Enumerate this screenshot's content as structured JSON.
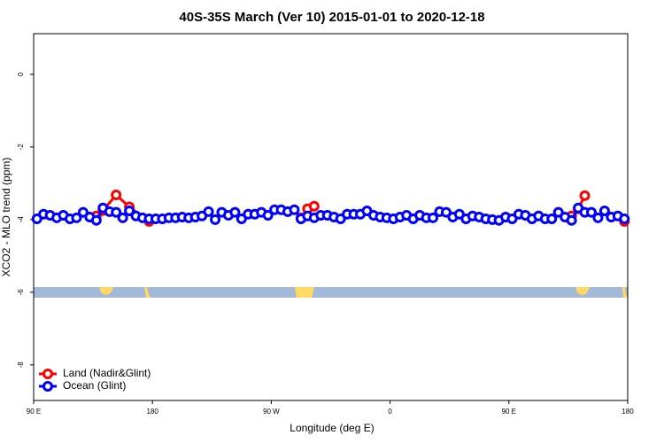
{
  "chart_data": {
    "type": "line",
    "title": "40S-35S March (Ver 10)   2015-01-01 to 2020-12-18",
    "x_label": "Longitude (deg E)",
    "y_label": "XCO2 - MLO trend (ppm)",
    "xlim": [
      90,
      540
    ],
    "xticks": [
      {
        "value": 90,
        "label": "90 E"
      },
      {
        "value": 180,
        "label": "180"
      },
      {
        "value": 270,
        "label": "90 W"
      },
      {
        "value": 360,
        "label": "0"
      },
      {
        "value": 450,
        "label": "90 E"
      },
      {
        "value": 540,
        "label": "180"
      }
    ],
    "ylim": [
      -8.98,
      1.12
    ],
    "yticks": [
      0,
      -2,
      -4,
      -6,
      -8
    ],
    "legend": "bottom-left",
    "series": [
      {
        "name": "Land (Nadir&Glint)",
        "color": "#ff0000",
        "x": [
          137.5,
          142.5,
          152.5,
          162.5,
          177.5,
          250,
          292.5,
          297.5,
          302.5,
          400,
          497.5,
          502.5,
          507.5,
          520,
          537.5
        ],
        "values": [
          -3.9,
          -3.75,
          -3.32,
          -3.65,
          -4.05,
          null,
          -3.95,
          -3.7,
          -3.63,
          null,
          -3.9,
          -3.7,
          -3.34,
          null,
          -4.05
        ]
      },
      {
        "name": "Ocean (Glint)",
        "color": "#0000ff",
        "x": [
          92.5,
          97.5,
          102.5,
          107.5,
          112.5,
          117.5,
          122.5,
          127.5,
          132.5,
          137.5,
          142.5,
          147.5,
          152.5,
          157.5,
          162.5,
          167.5,
          172.5,
          177.5,
          182.5,
          187.5,
          192.5,
          197.5,
          202.5,
          207.5,
          212.5,
          217.5,
          222.5,
          227.5,
          232.5,
          237.5,
          242.5,
          247.5,
          252.5,
          257.5,
          262.5,
          267.5,
          272.5,
          277.5,
          282.5,
          287.5,
          292.5,
          297.5,
          302.5,
          307.5,
          312.5,
          317.5,
          322.5,
          327.5,
          332.5,
          337.5,
          342.5,
          347.5,
          352.5,
          357.5,
          362.5,
          367.5,
          372.5,
          377.5,
          382.5,
          387.5,
          392.5,
          397.5,
          402.5,
          407.5,
          412.5,
          417.5,
          422.5,
          427.5,
          432.5,
          437.5,
          442.5,
          447.5,
          452.5,
          457.5,
          462.5,
          467.5,
          472.5,
          477.5,
          482.5,
          487.5,
          492.5,
          497.5,
          502.5,
          507.5,
          512.5,
          517.5,
          522.5,
          527.5,
          532.5,
          537.5
        ],
        "values": [
          -3.98,
          -3.85,
          -3.88,
          -3.95,
          -3.88,
          -3.98,
          -3.95,
          -3.8,
          -3.93,
          -4.02,
          -3.68,
          -3.78,
          -3.8,
          -3.95,
          -3.76,
          -3.9,
          -3.95,
          -3.98,
          -3.98,
          -3.98,
          -3.95,
          -3.95,
          -3.93,
          -3.95,
          -3.93,
          -3.9,
          -3.78,
          -4.0,
          -3.8,
          -3.88,
          -3.8,
          -3.98,
          -3.85,
          -3.85,
          -3.8,
          -3.88,
          -3.73,
          -3.73,
          -3.78,
          -3.73,
          -3.98,
          -3.9,
          -3.95,
          -3.88,
          -3.88,
          -3.93,
          -3.98,
          -3.85,
          -3.85,
          -3.85,
          -3.76,
          -3.88,
          -3.93,
          -3.95,
          -3.98,
          -3.93,
          -3.88,
          -3.98,
          -3.88,
          -3.95,
          -3.95,
          -3.78,
          -3.8,
          -3.93,
          -3.85,
          -3.98,
          -3.9,
          -3.93,
          -3.98,
          -4.0,
          -4.02,
          -3.93,
          -3.98,
          -3.85,
          -3.88,
          -3.98,
          -3.9,
          -3.98,
          -3.98,
          -3.8,
          -3.93,
          -4.02,
          -3.68,
          -3.8,
          -3.8,
          -3.95,
          -3.76,
          -3.93,
          -3.9,
          -3.98
        ]
      }
    ]
  }
}
